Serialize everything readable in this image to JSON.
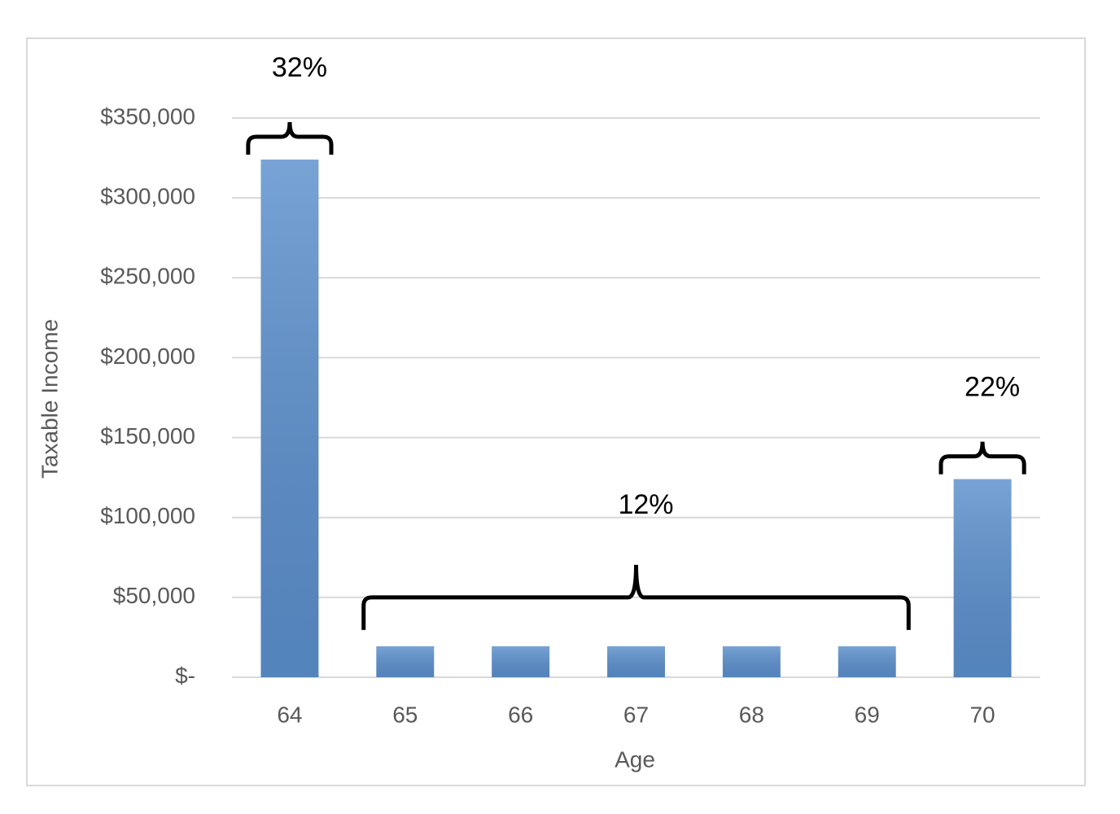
{
  "chart_data": {
    "type": "bar",
    "x_label": "Age",
    "y_label": "Taxable Income",
    "categories": [
      "64",
      "65",
      "66",
      "67",
      "68",
      "69",
      "70"
    ],
    "values": [
      324000,
      19400,
      19400,
      19400,
      19400,
      19400,
      124000
    ],
    "color": "#5b8fcc",
    "ylim": [
      0,
      350000
    ],
    "yticks": [
      {
        "value": 0,
        "label": "$-"
      },
      {
        "value": 50000,
        "label": "$50,000"
      },
      {
        "value": 100000,
        "label": "$100,000"
      },
      {
        "value": 150000,
        "label": "$150,000"
      },
      {
        "value": 200000,
        "label": "$200,000"
      },
      {
        "value": 250000,
        "label": "$250,000"
      },
      {
        "value": 300000,
        "label": "$300,000"
      },
      {
        "value": 350000,
        "label": "$350,000"
      }
    ],
    "grid": true,
    "annotations": [
      {
        "text": "32%",
        "from": "64",
        "to": "64"
      },
      {
        "text": "12%",
        "from": "65",
        "to": "69"
      },
      {
        "text": "22%",
        "from": "70",
        "to": "70"
      }
    ]
  }
}
